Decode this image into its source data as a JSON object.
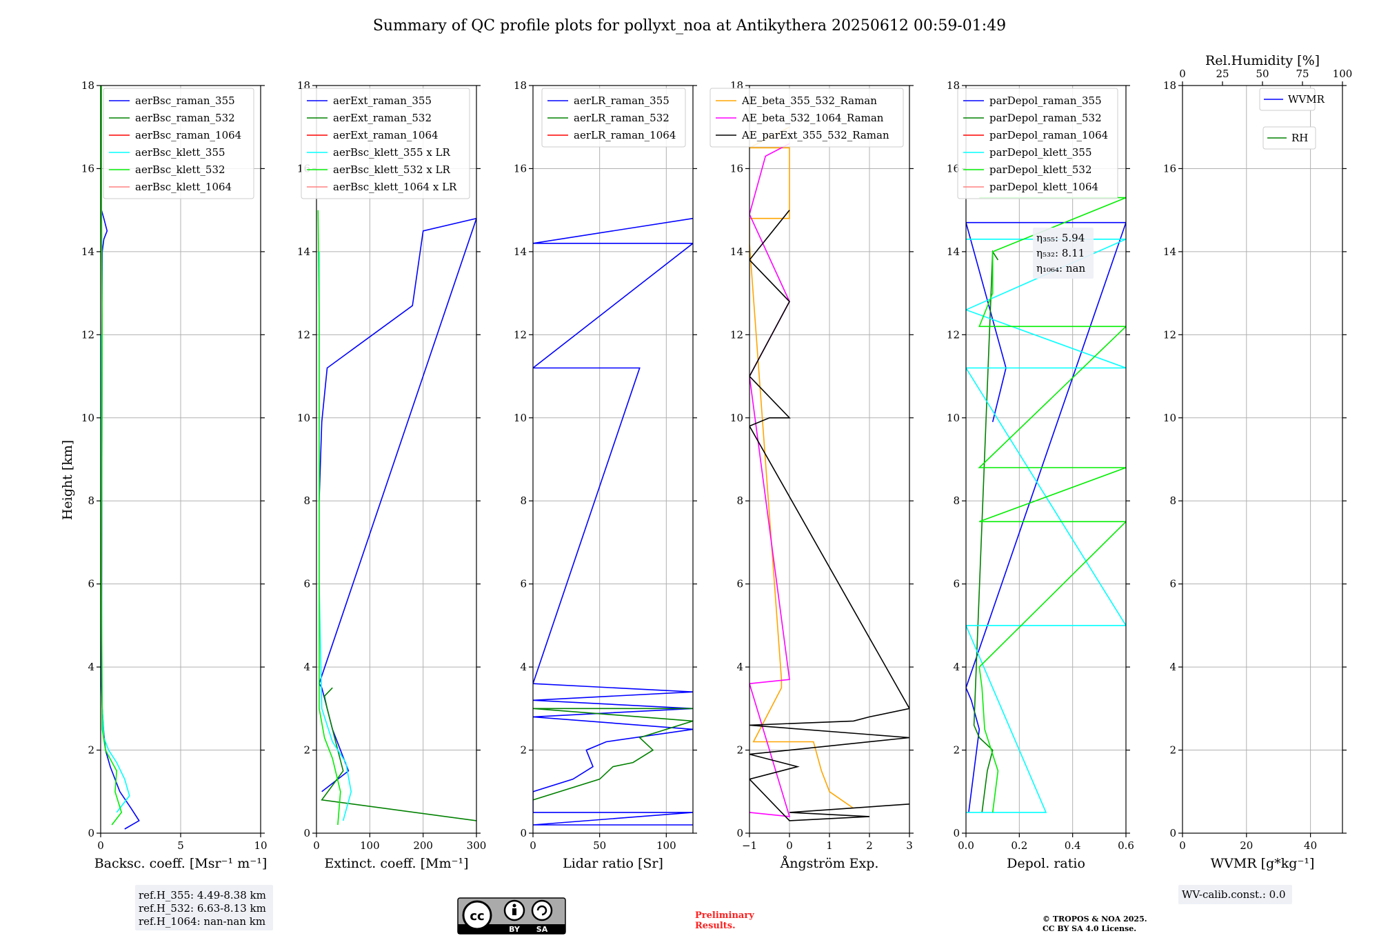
{
  "title": "Summary of QC profile plots for pollyxt_noa at Antikythera 20250612 00:59-01:49",
  "y_label": "Height [km]",
  "colors": {
    "blue": "#0000ff",
    "green": "#008000",
    "red": "#ff0000",
    "cyan": "#00ffff",
    "lime": "#00ee00",
    "salmon": "#ff8080",
    "orange": "#ffa500",
    "magenta": "#ff00ff",
    "black": "#000000",
    "grid": "#b0b0b0",
    "preliminary": "#ff2020"
  },
  "chart_data": [
    {
      "type": "line",
      "xlabel": "Backsc. coeff. [Msr⁻¹ m⁻¹]",
      "ylabel": "Height [km]",
      "xlim": [
        0,
        10
      ],
      "ylim": [
        0,
        18
      ],
      "xticks": [
        "0",
        "5",
        "10"
      ],
      "yticks": [
        "0",
        "2",
        "4",
        "6",
        "8",
        "10",
        "12",
        "14",
        "16",
        "18"
      ],
      "grid": true,
      "legend_position": "top-right",
      "series": [
        {
          "name": "aerBsc_raman_355",
          "color": "#0000ff",
          "x": [
            1.5,
            2.4,
            1.9,
            1.2,
            0.6,
            0.3,
            0.2,
            0.1,
            0.05,
            0.1,
            0.2,
            0.4,
            0.2,
            0.05
          ],
          "y": [
            0.1,
            0.3,
            0.6,
            1.0,
            1.6,
            2.0,
            2.4,
            3.0,
            3.6,
            14.0,
            14.3,
            14.5,
            14.8,
            15.0
          ]
        },
        {
          "name": "aerBsc_raman_532",
          "color": "#008000",
          "x": [],
          "y": []
        },
        {
          "name": "aerBsc_raman_1064",
          "color": "#ff0000",
          "x": [],
          "y": []
        },
        {
          "name": "aerBsc_klett_355",
          "color": "#00ffff",
          "x": [
            1.0,
            1.8,
            1.5,
            1.0,
            0.5,
            0.2,
            0.1,
            0.05,
            0.05
          ],
          "y": [
            0.5,
            0.9,
            1.3,
            1.7,
            2.0,
            2.3,
            3.0,
            6.0,
            12.0
          ]
        },
        {
          "name": "aerBsc_klett_532",
          "color": "#00ee00",
          "x": [
            0.7,
            1.3,
            0.9,
            1.0,
            0.3,
            0.1,
            0.05,
            0.1,
            0.05,
            0.05
          ],
          "y": [
            0.2,
            0.5,
            1.0,
            1.5,
            2.0,
            2.5,
            6.0,
            12.5,
            15.0,
            18.0
          ]
        },
        {
          "name": "aerBsc_klett_1064",
          "color": "#ff8080",
          "x": [],
          "y": []
        }
      ]
    },
    {
      "type": "line",
      "xlabel": "Extinct. coeff. [Mm⁻¹]",
      "ylabel": "",
      "xlim": [
        0,
        300
      ],
      "ylim": [
        0,
        18
      ],
      "xticks": [
        "0",
        "100",
        "200",
        "300"
      ],
      "yticks": [
        "0",
        "2",
        "4",
        "6",
        "8",
        "10",
        "12",
        "14",
        "16",
        "18"
      ],
      "grid": true,
      "legend_position": "top-right",
      "series": [
        {
          "name": "aerExt_raman_355",
          "color": "#0000ff",
          "x": [
            10,
            60,
            45,
            30,
            20,
            10,
            5,
            300,
            200,
            180,
            20,
            10,
            5
          ],
          "y": [
            1.0,
            1.5,
            2.0,
            2.5,
            3.0,
            3.5,
            3.6,
            14.8,
            14.5,
            12.7,
            11.2,
            9.9,
            8.0
          ]
        },
        {
          "name": "aerExt_raman_532",
          "color": "#008000",
          "x": [
            300,
            10,
            50,
            40,
            30,
            20,
            15,
            30
          ],
          "y": [
            0.3,
            0.8,
            1.5,
            2.0,
            2.5,
            3.0,
            3.3,
            3.5
          ]
        },
        {
          "name": "aerExt_raman_1064",
          "color": "#ff0000",
          "x": [],
          "y": []
        },
        {
          "name": "aerBsc_klett_355 x LR",
          "color": "#00ffff",
          "x": [
            50,
            65,
            55,
            30,
            10,
            5,
            5
          ],
          "y": [
            0.3,
            1.0,
            1.7,
            2.2,
            3.0,
            6.0,
            14.0
          ]
        },
        {
          "name": "aerBsc_klett_532 x LR",
          "color": "#00ee00",
          "x": [
            40,
            45,
            30,
            15,
            5,
            5,
            3
          ],
          "y": [
            0.2,
            1.0,
            1.8,
            2.3,
            3.0,
            12.5,
            15.0
          ]
        },
        {
          "name": "aerBsc_klett_1064 x LR",
          "color": "#ff8080",
          "x": [],
          "y": []
        }
      ]
    },
    {
      "type": "line",
      "xlabel": "Lidar ratio [Sr]",
      "ylabel": "",
      "xlim": [
        0,
        120
      ],
      "ylim": [
        0,
        18
      ],
      "xticks": [
        "0",
        "50",
        "100"
      ],
      "yticks": [
        "0",
        "2",
        "4",
        "6",
        "8",
        "10",
        "12",
        "14",
        "16",
        "18"
      ],
      "grid": true,
      "legend_position": "top-right",
      "series": [
        {
          "name": "aerLR_raman_355",
          "color": "#0000ff",
          "x": [
            120,
            0,
            120,
            0,
            0,
            30,
            45,
            40,
            55,
            120,
            0,
            120,
            0,
            120,
            0,
            80,
            0,
            120,
            0,
            120
          ],
          "y": [
            0.2,
            0.2,
            0.5,
            0.5,
            1.0,
            1.3,
            1.6,
            2.0,
            2.2,
            2.5,
            2.8,
            3.0,
            3.2,
            3.4,
            3.6,
            11.2,
            11.2,
            14.2,
            14.2,
            14.8
          ]
        },
        {
          "name": "aerLR_raman_532",
          "color": "#008000",
          "x": [
            0,
            50,
            60,
            75,
            90,
            80,
            120,
            0,
            120
          ],
          "y": [
            0.8,
            1.3,
            1.6,
            1.7,
            2.0,
            2.3,
            2.7,
            3.0,
            3.0
          ]
        },
        {
          "name": "aerLR_raman_1064",
          "color": "#ff0000",
          "x": [],
          "y": []
        }
      ]
    },
    {
      "type": "line",
      "xlabel": "Ångström Exp.",
      "ylabel": "",
      "xlim": [
        -1,
        3
      ],
      "ylim": [
        0,
        18
      ],
      "xticks": [
        "−1",
        "0",
        "1",
        "2",
        "3"
      ],
      "yticks": [
        "0",
        "2",
        "4",
        "6",
        "8",
        "10",
        "12",
        "14",
        "16",
        "18"
      ],
      "grid": true,
      "legend_position": "top-right",
      "series": [
        {
          "name": "AE_beta_355_532_Raman",
          "color": "#ffa500",
          "x": [
            1.6,
            1.0,
            0.8,
            0.6,
            -0.9,
            -0.2,
            -0.2,
            -1.0,
            -1.0,
            0.0,
            0.0,
            -1.0,
            0.0
          ],
          "y": [
            0.6,
            1.0,
            1.5,
            2.2,
            2.2,
            3.5,
            3.7,
            14.2,
            14.8,
            14.8,
            16.5,
            16.5,
            17.0
          ]
        },
        {
          "name": "AE_beta_532_1064_Raman",
          "color": "#ff00ff",
          "x": [
            -1.0,
            0.0,
            -1.0,
            0.0,
            -1.0,
            0.0,
            -1.0,
            -0.6,
            0.0
          ],
          "y": [
            0.5,
            0.4,
            3.6,
            3.7,
            11.0,
            12.8,
            14.9,
            16.3,
            16.6
          ]
        },
        {
          "name": "AE_parExt_355_532_Raman",
          "color": "#000000",
          "x": [
            3.0,
            0.0,
            2.0,
            0.0,
            -1.0,
            0.2,
            -1.0,
            3.0,
            -1.0,
            1.6,
            2.0,
            3.0,
            -1.0,
            -0.5,
            0.0,
            -1.0,
            0.0,
            -1.0,
            0.0
          ],
          "y": [
            0.7,
            0.5,
            0.4,
            0.3,
            1.3,
            1.6,
            1.9,
            2.3,
            2.6,
            2.7,
            2.8,
            3.0,
            9.8,
            10.0,
            10.0,
            11.0,
            12.8,
            13.8,
            15.0
          ]
        }
      ]
    },
    {
      "type": "line",
      "xlabel": "Depol. ratio",
      "ylabel": "",
      "xlim": [
        0,
        0.6
      ],
      "ylim": [
        0,
        18
      ],
      "xticks": [
        "0.0",
        "0.2",
        "0.4",
        "0.6"
      ],
      "yticks": [
        "0",
        "2",
        "4",
        "6",
        "8",
        "10",
        "12",
        "14",
        "16",
        "18"
      ],
      "grid": true,
      "legend_position": "top-left",
      "annotations": [
        "η₃₅₅: 5.94",
        "η₅₃₂: 8.11",
        "η₁₀₆₄: nan"
      ],
      "series": [
        {
          "name": "parDepol_raman_355",
          "color": "#0000ff",
          "x": [
            0.01,
            0.03,
            0.05,
            0.02,
            0.0,
            0.6,
            0.0,
            0.15,
            0.1
          ],
          "y": [
            0.5,
            1.5,
            2.5,
            3.2,
            3.5,
            14.7,
            14.7,
            11.2,
            9.9
          ]
        },
        {
          "name": "parDepol_raman_532",
          "color": "#008000",
          "x": [
            0.06,
            0.08,
            0.1,
            0.05,
            0.03,
            0.1,
            0.12
          ],
          "y": [
            0.5,
            1.5,
            2.0,
            2.3,
            2.6,
            14.0,
            13.8
          ]
        },
        {
          "name": "parDepol_raman_1064",
          "color": "#ff0000",
          "x": [],
          "y": []
        },
        {
          "name": "parDepol_klett_355",
          "color": "#00ffff",
          "x": [
            0.0,
            0.3,
            0.0,
            0.6,
            0.0,
            0.6,
            0.0,
            0.6,
            0.0
          ],
          "y": [
            0.5,
            0.5,
            5.0,
            5.0,
            11.2,
            11.2,
            12.6,
            14.3,
            14.3
          ]
        },
        {
          "name": "parDepol_klett_532",
          "color": "#00ee00",
          "x": [
            0.1,
            0.12,
            0.07,
            0.06,
            0.05,
            0.6,
            0.05,
            0.6,
            0.05,
            0.6,
            0.05,
            0.1,
            0.1,
            0.6,
            0.05
          ],
          "y": [
            0.5,
            1.5,
            2.5,
            3.5,
            4.0,
            7.5,
            7.5,
            8.8,
            8.8,
            12.2,
            12.2,
            13.0,
            14.0,
            15.3,
            15.3
          ]
        },
        {
          "name": "parDepol_klett_1064",
          "color": "#ff8080",
          "x": [],
          "y": []
        }
      ]
    },
    {
      "type": "line",
      "xlabel": "WVMR [g*kg⁻¹]",
      "x2label": "Rel.Humidity [%]",
      "ylabel": "",
      "xlim": [
        0,
        50
      ],
      "x2lim": [
        0,
        100
      ],
      "ylim": [
        0,
        18
      ],
      "xticks": [
        "0",
        "20",
        "40"
      ],
      "x2ticks": [
        "0",
        "25",
        "50",
        "75",
        "100"
      ],
      "yticks": [
        "0",
        "2",
        "4",
        "6",
        "8",
        "10",
        "12",
        "14",
        "16",
        "18"
      ],
      "grid": true,
      "legend_position": "top-right",
      "series": [
        {
          "name": "WVMR",
          "color": "#0000ff",
          "x": [],
          "y": []
        },
        {
          "name": "RH",
          "color": "#008000",
          "x": [],
          "y": []
        }
      ]
    }
  ],
  "boxes": {
    "ref_h": [
      "ref.H_355: 4.49-8.38 km",
      "ref.H_532: 6.63-8.13 km",
      "ref.H_1064: nan-nan km"
    ],
    "wv_calib": "WV-calib.const.: 0.0"
  },
  "footer": {
    "license_badge": {
      "cc": "cc",
      "by": "BY",
      "sa": "SA"
    },
    "preliminary": [
      "Preliminary",
      "Results."
    ],
    "copyright": [
      "© TROPOS & NOA 2025.",
      "CC BY SA 4.0 License."
    ]
  }
}
